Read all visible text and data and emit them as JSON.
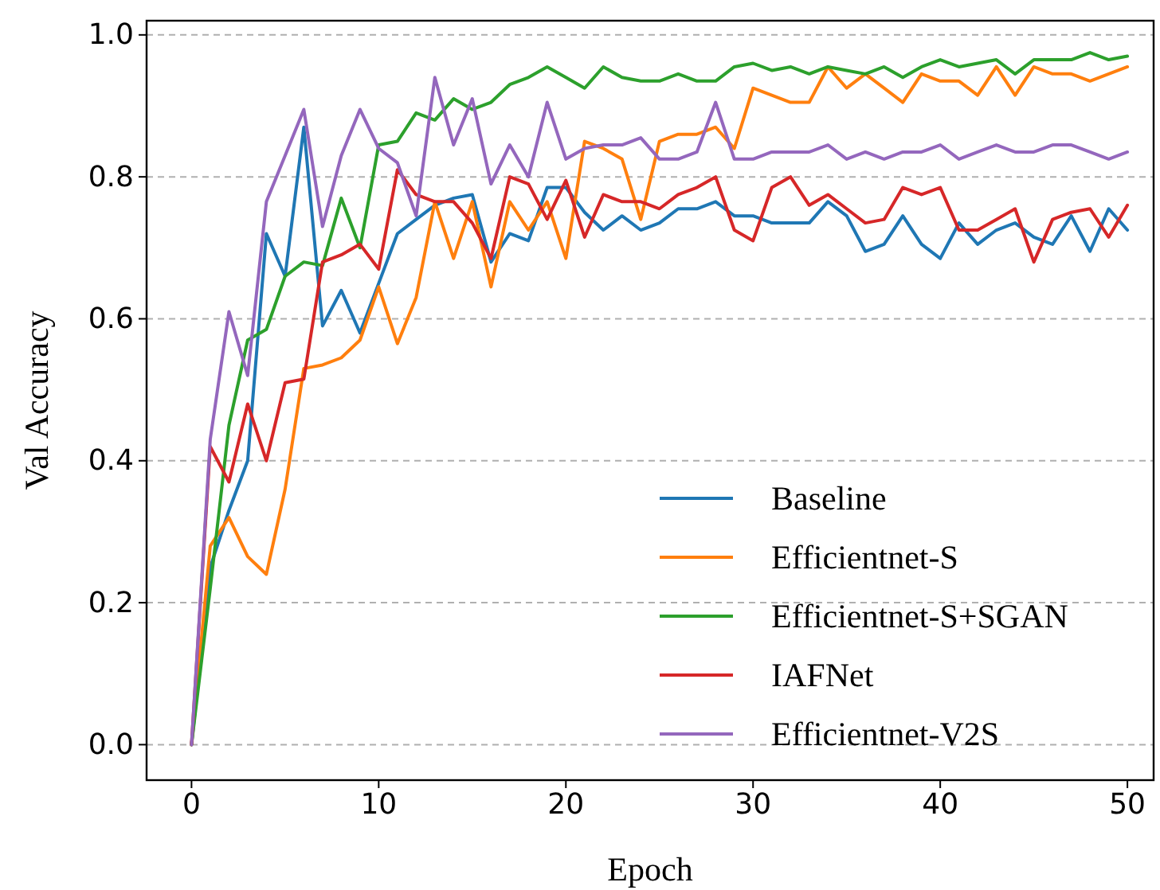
{
  "chart_data": {
    "type": "line",
    "xlabel": "Epoch",
    "ylabel": "Val Accuracy",
    "x": [
      0,
      1,
      2,
      3,
      4,
      5,
      6,
      7,
      8,
      9,
      10,
      11,
      12,
      13,
      14,
      15,
      16,
      17,
      18,
      19,
      20,
      21,
      22,
      23,
      24,
      25,
      26,
      27,
      28,
      29,
      30,
      31,
      32,
      33,
      34,
      35,
      36,
      37,
      38,
      39,
      40,
      41,
      42,
      43,
      44,
      45,
      46,
      47,
      48,
      49,
      50
    ],
    "xlim": [
      -2.4,
      51.4
    ],
    "xticks": [
      0,
      10,
      20,
      30,
      40,
      50
    ],
    "ylim": [
      -0.05,
      1.02
    ],
    "yticks": [
      {
        "value": 0,
        "label": "0.0"
      },
      {
        "value": 0.2,
        "label": "0.2"
      },
      {
        "value": 0.4,
        "label": "0.4"
      },
      {
        "value": 0.6,
        "label": "0.6"
      },
      {
        "value": 0.8,
        "label": "0.8"
      },
      {
        "value": 1,
        "label": "1.0"
      }
    ],
    "grid": "y",
    "legend": "bottom right",
    "line_style": "solid",
    "marker": "none",
    "series": [
      {
        "name": "Baseline",
        "color": "#1f77b4",
        "values": [
          0,
          0.25,
          0.33,
          0.4,
          0.72,
          0.66,
          0.87,
          0.59,
          0.64,
          0.58,
          0.65,
          0.72,
          0.74,
          0.76,
          0.77,
          0.775,
          0.68,
          0.72,
          0.71,
          0.785,
          0.785,
          0.75,
          0.725,
          0.745,
          0.725,
          0.735,
          0.755,
          0.755,
          0.765,
          0.745,
          0.745,
          0.735,
          0.735,
          0.735,
          0.765,
          0.745,
          0.695,
          0.705,
          0.745,
          0.705,
          0.685,
          0.735,
          0.705,
          0.725,
          0.735,
          0.715,
          0.705,
          0.745,
          0.695,
          0.755,
          0.725
        ]
      },
      {
        "name": "Efficientnet-S",
        "color": "#ff7f0e",
        "values": [
          0,
          0.28,
          0.32,
          0.265,
          0.24,
          0.36,
          0.53,
          0.535,
          0.545,
          0.57,
          0.645,
          0.565,
          0.63,
          0.765,
          0.685,
          0.765,
          0.645,
          0.765,
          0.725,
          0.765,
          0.685,
          0.85,
          0.84,
          0.825,
          0.74,
          0.85,
          0.86,
          0.86,
          0.87,
          0.84,
          0.925,
          0.915,
          0.905,
          0.905,
          0.955,
          0.925,
          0.945,
          0.925,
          0.905,
          0.945,
          0.935,
          0.935,
          0.915,
          0.955,
          0.915,
          0.955,
          0.945,
          0.945,
          0.935,
          0.945,
          0.955
        ]
      },
      {
        "name": "Efficientnet-S+SGAN",
        "color": "#2ca02c",
        "values": [
          0,
          0.22,
          0.45,
          0.57,
          0.585,
          0.66,
          0.68,
          0.675,
          0.77,
          0.7,
          0.845,
          0.85,
          0.89,
          0.88,
          0.91,
          0.895,
          0.905,
          0.93,
          0.94,
          0.955,
          0.94,
          0.925,
          0.955,
          0.94,
          0.935,
          0.935,
          0.945,
          0.935,
          0.935,
          0.955,
          0.96,
          0.95,
          0.955,
          0.945,
          0.955,
          0.95,
          0.945,
          0.955,
          0.94,
          0.955,
          0.965,
          0.955,
          0.96,
          0.965,
          0.945,
          0.965,
          0.965,
          0.965,
          0.975,
          0.965,
          0.97
        ]
      },
      {
        "name": "IAFNet",
        "color": "#d62728",
        "values": [
          0,
          0.42,
          0.37,
          0.48,
          0.4,
          0.51,
          0.515,
          0.68,
          0.69,
          0.705,
          0.67,
          0.81,
          0.775,
          0.765,
          0.765,
          0.735,
          0.685,
          0.8,
          0.79,
          0.74,
          0.795,
          0.715,
          0.775,
          0.765,
          0.765,
          0.755,
          0.775,
          0.785,
          0.8,
          0.725,
          0.71,
          0.785,
          0.8,
          0.76,
          0.775,
          0.755,
          0.735,
          0.74,
          0.785,
          0.775,
          0.785,
          0.725,
          0.725,
          0.74,
          0.755,
          0.68,
          0.74,
          0.75,
          0.755,
          0.715,
          0.76
        ]
      },
      {
        "name": "Efficientnet-V2S",
        "color": "#9467bd",
        "values": [
          0,
          0.43,
          0.61,
          0.52,
          0.765,
          0.83,
          0.895,
          0.73,
          0.83,
          0.895,
          0.84,
          0.82,
          0.745,
          0.94,
          0.845,
          0.91,
          0.79,
          0.845,
          0.8,
          0.905,
          0.825,
          0.84,
          0.845,
          0.845,
          0.855,
          0.825,
          0.825,
          0.835,
          0.905,
          0.825,
          0.825,
          0.835,
          0.835,
          0.835,
          0.845,
          0.825,
          0.835,
          0.825,
          0.835,
          0.835,
          0.845,
          0.825,
          0.835,
          0.845,
          0.835,
          0.835,
          0.845,
          0.845,
          0.835,
          0.825,
          0.835
        ]
      }
    ]
  }
}
